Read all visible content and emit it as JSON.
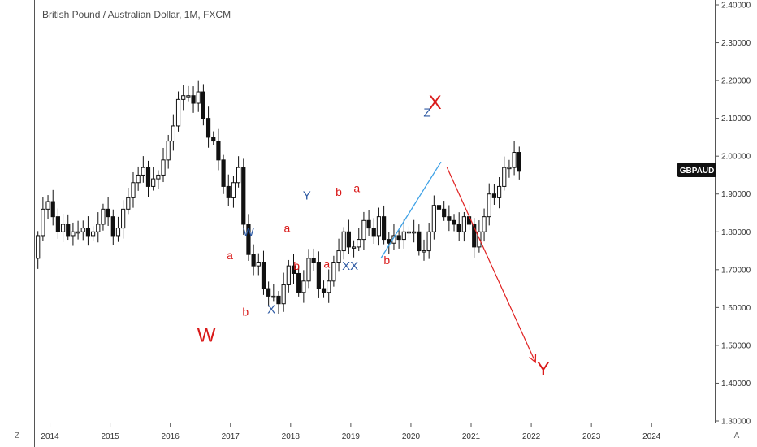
{
  "chart_data": {
    "type": "candlestick",
    "title": "British Pound / Australian Dollar, 1M, FXCM",
    "symbol_badge": "GBPAUD",
    "x_ticks": [
      "2014",
      "2015",
      "2016",
      "2017",
      "2018",
      "2019",
      "2020",
      "2021",
      "2022",
      "2023",
      "2024"
    ],
    "y_ticks": [
      "2.40000",
      "2.30000",
      "2.20000",
      "2.10000",
      "2.00000",
      "1.90000",
      "1.80000",
      "1.70000",
      "1.60000",
      "1.50000",
      "1.40000",
      "1.30000"
    ],
    "ylim": [
      1.3,
      2.4
    ],
    "xlim": [
      2013.75,
      2025.05
    ],
    "closes": [
      1.79,
      1.86,
      1.88,
      1.84,
      1.8,
      1.82,
      1.79,
      1.8,
      1.8,
      1.81,
      1.79,
      1.8,
      1.82,
      1.86,
      1.84,
      1.79,
      1.81,
      1.86,
      1.89,
      1.93,
      1.95,
      1.97,
      1.92,
      1.94,
      1.95,
      1.99,
      2.04,
      2.08,
      2.15,
      2.16,
      2.16,
      2.14,
      2.17,
      2.1,
      2.05,
      2.04,
      1.99,
      1.92,
      1.89,
      1.93,
      1.97,
      1.82,
      1.74,
      1.71,
      1.72,
      1.65,
      1.63,
      1.63,
      1.61,
      1.66,
      1.71,
      1.69,
      1.64,
      1.67,
      1.73,
      1.72,
      1.65,
      1.64,
      1.67,
      1.72,
      1.75,
      1.8,
      1.76,
      1.76,
      1.78,
      1.83,
      1.81,
      1.79,
      1.84,
      1.78,
      1.77,
      1.79,
      1.78,
      1.8,
      1.8,
      1.8,
      1.75,
      1.75,
      1.8,
      1.87,
      1.86,
      1.84,
      1.83,
      1.82,
      1.8,
      1.84,
      1.82,
      1.76,
      1.8,
      1.84,
      1.9,
      1.89,
      1.92,
      1.97,
      1.97,
      2.01,
      1.96
    ],
    "annotations": [
      {
        "text": "W",
        "x": 2016.6,
        "y": 1.51,
        "color": "#d91a1a",
        "size": 24
      },
      {
        "text": "X",
        "x": 2020.4,
        "y": 2.125,
        "color": "#d91a1a",
        "size": 24
      },
      {
        "text": "Y",
        "x": 2022.2,
        "y": 1.42,
        "color": "#d91a1a",
        "size": 24
      },
      {
        "text": "Z",
        "x": 2020.27,
        "y": 2.105,
        "color": "#2e5aa3",
        "size": 15
      },
      {
        "text": "W",
        "x": 2017.3,
        "y": 1.79,
        "color": "#2e5aa3",
        "size": 15
      },
      {
        "text": "X",
        "x": 2017.68,
        "y": 1.585,
        "color": "#2e5aa3",
        "size": 15
      },
      {
        "text": "Y",
        "x": 2018.27,
        "y": 1.885,
        "color": "#2e5aa3",
        "size": 15
      },
      {
        "text": "XX",
        "x": 2018.99,
        "y": 1.7,
        "color": "#2e5aa3",
        "size": 15
      },
      {
        "text": "a",
        "x": 2016.99,
        "y": 1.728,
        "color": "#d91a1a",
        "size": 14
      },
      {
        "text": "b",
        "x": 2017.25,
        "y": 1.578,
        "color": "#d91a1a",
        "size": 14
      },
      {
        "text": "a",
        "x": 2017.94,
        "y": 1.8,
        "color": "#d91a1a",
        "size": 14
      },
      {
        "text": "b",
        "x": 2018.1,
        "y": 1.7,
        "color": "#d91a1a",
        "size": 14
      },
      {
        "text": "b",
        "x": 2018.8,
        "y": 1.895,
        "color": "#d91a1a",
        "size": 14
      },
      {
        "text": "a",
        "x": 2018.6,
        "y": 1.705,
        "color": "#d91a1a",
        "size": 14
      },
      {
        "text": "a",
        "x": 2019.1,
        "y": 1.905,
        "color": "#d91a1a",
        "size": 14
      },
      {
        "text": "b",
        "x": 2019.6,
        "y": 1.715,
        "color": "#d91a1a",
        "size": 14
      }
    ],
    "trendline": {
      "from": [
        2019.5,
        1.73
      ],
      "to": [
        2020.5,
        1.985
      ],
      "color": "#3ea1e6"
    },
    "projection_arrow": {
      "from": [
        2020.6,
        1.97
      ],
      "to": [
        2022.07,
        1.455
      ],
      "color": "#e02020"
    },
    "corner_left": "Z",
    "corner_right": "A"
  }
}
